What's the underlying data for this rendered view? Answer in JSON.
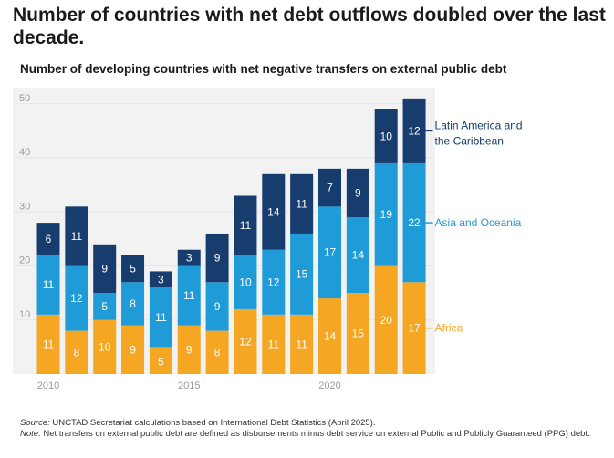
{
  "headline": "Number of countries with net debt outflows doubled over the last decade.",
  "subtitle": "Number of developing countries with net negative transfers on external public debt",
  "source": {
    "source_label": "Source:",
    "source_text": " UNCTAD Secretariat calculations based on International Debt Statistics (April 2025).",
    "note_label": "Note:",
    "note_text": " Net transfers on external public debt are defined as disbursements minus debt service on external Public and Publicly Guaranteed (PPG) debt."
  },
  "colors": {
    "africa": "#f5a623",
    "asia": "#1f9bd7",
    "latam": "#173c6e",
    "axis_text": "#9a9a9a",
    "gridline": "#e6e6e6",
    "chart_bg": "#f2f2f2"
  },
  "chart_data": {
    "type": "bar",
    "stacked": true,
    "title": "Number of developing countries with net negative transfers on external public debt",
    "xlabel": "",
    "ylabel": "",
    "ylim": [
      0,
      53
    ],
    "y_ticks": [
      10,
      20,
      30,
      40,
      50
    ],
    "x_tick_labels": [
      {
        "year": 2010,
        "label": "2010"
      },
      {
        "year": 2015,
        "label": "2015"
      },
      {
        "year": 2020,
        "label": "2020"
      }
    ],
    "grid": true,
    "legend": "right, labels at end of series",
    "categories": [
      2010,
      2011,
      2012,
      2013,
      2014,
      2015,
      2016,
      2017,
      2018,
      2019,
      2020,
      2021,
      2022,
      2023
    ],
    "series": [
      {
        "name": "Africa",
        "color": "#f5a623",
        "values": [
          11,
          8,
          10,
          9,
          5,
          9,
          8,
          12,
          11,
          11,
          14,
          15,
          20,
          17
        ]
      },
      {
        "name": "Asia and Oceania",
        "color": "#1f9bd7",
        "values": [
          11,
          12,
          5,
          8,
          11,
          11,
          9,
          10,
          12,
          15,
          17,
          14,
          19,
          22
        ]
      },
      {
        "name": "Latin America and the Caribbean",
        "color": "#173c6e",
        "values": [
          6,
          11,
          9,
          5,
          3,
          3,
          9,
          11,
          14,
          11,
          7,
          9,
          10,
          12
        ]
      }
    ]
  }
}
